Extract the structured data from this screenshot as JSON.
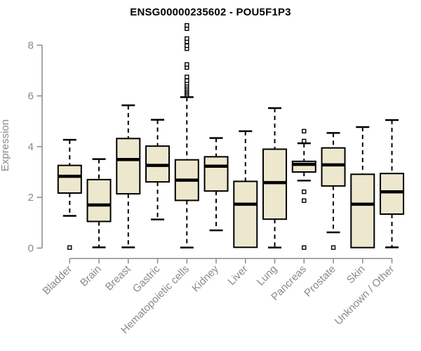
{
  "chart_data": {
    "type": "boxplot",
    "title": "ENSG00000235602 - POU5F1P3",
    "ylabel": "Expression",
    "xlabel": "",
    "ylim": [
      0,
      8.9
    ],
    "y_ticks": [
      0,
      2,
      4,
      6,
      8
    ],
    "grid": false,
    "legend": "none",
    "categories": [
      "Bladder",
      "Brain",
      "Breast",
      "Gastric",
      "Hematopoietic cells",
      "Kidney",
      "Liver",
      "Lung",
      "Pancreas",
      "Prostate",
      "Skin",
      "Unknown / Other"
    ],
    "boxes": [
      {
        "category": "Bladder",
        "whisker_low": 1.27,
        "q1": 2.17,
        "median": 2.83,
        "q3": 3.26,
        "whisker_high": 4.27,
        "outliers": [
          0.02
        ]
      },
      {
        "category": "Brain",
        "whisker_low": 0.03,
        "q1": 1.05,
        "median": 1.7,
        "q3": 2.7,
        "whisker_high": 3.51,
        "outliers": []
      },
      {
        "category": "Breast",
        "whisker_low": 0.03,
        "q1": 2.14,
        "median": 3.49,
        "q3": 4.32,
        "whisker_high": 5.63,
        "outliers": []
      },
      {
        "category": "Gastric",
        "whisker_low": 1.13,
        "q1": 2.61,
        "median": 3.26,
        "q3": 4.02,
        "whisker_high": 5.06,
        "outliers": []
      },
      {
        "category": "Hematopoietic cells",
        "whisker_low": 0.02,
        "q1": 1.88,
        "median": 2.68,
        "q3": 3.48,
        "whisker_high": 5.95,
        "outliers": [
          6.04,
          6.1,
          6.16,
          6.22,
          6.28,
          6.35,
          6.42,
          6.5,
          6.6,
          6.75,
          7.12,
          7.24,
          7.86,
          7.98,
          8.14,
          8.26,
          8.65,
          8.78
        ]
      },
      {
        "category": "Kidney",
        "whisker_low": 0.7,
        "q1": 2.25,
        "median": 3.23,
        "q3": 3.6,
        "whisker_high": 4.34,
        "outliers": []
      },
      {
        "category": "Liver",
        "whisker_low": 0.03,
        "q1": 0.03,
        "median": 1.73,
        "q3": 2.63,
        "whisker_high": 4.61,
        "outliers": []
      },
      {
        "category": "Lung",
        "whisker_low": 0.02,
        "q1": 1.14,
        "median": 2.58,
        "q3": 3.9,
        "whisker_high": 5.52,
        "outliers": []
      },
      {
        "category": "Pancreas",
        "whisker_low": 2.66,
        "q1": 3.0,
        "median": 3.3,
        "q3": 3.42,
        "whisker_high": 4.13,
        "outliers": [
          4.61,
          4.22,
          2.22,
          1.87,
          0.02
        ]
      },
      {
        "category": "Prostate",
        "whisker_low": 0.62,
        "q1": 2.45,
        "median": 3.28,
        "q3": 3.95,
        "whisker_high": 4.54,
        "outliers": [
          0.02
        ]
      },
      {
        "category": "Skin",
        "whisker_low": 0.02,
        "q1": 0.02,
        "median": 1.73,
        "q3": 2.91,
        "whisker_high": 4.77,
        "outliers": []
      },
      {
        "category": "Unknown / Other",
        "whisker_low": 0.03,
        "q1": 1.34,
        "median": 2.22,
        "q3": 2.94,
        "whisker_high": 5.05,
        "outliers": []
      }
    ],
    "colors": {
      "box_fill": "#EDE8CD",
      "box_border": "#000000",
      "median": "#000000",
      "whisker": "#000000",
      "axis": "#8a8a8a",
      "title": "#000000",
      "background": "#ffffff"
    }
  }
}
